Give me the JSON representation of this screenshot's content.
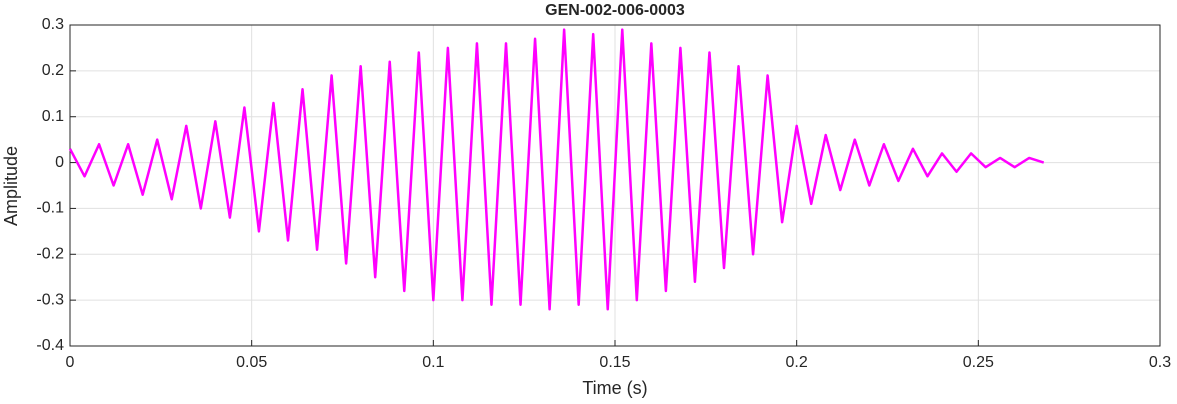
{
  "chart_data": {
    "type": "line",
    "title": "GEN-002-006-0003",
    "xlabel": "Time (s)",
    "ylabel": "Amplitude",
    "x": [
      0,
      0.004,
      0.008,
      0.012,
      0.016,
      0.02,
      0.024,
      0.028,
      0.032,
      0.036,
      0.04,
      0.044,
      0.048,
      0.052,
      0.056,
      0.06,
      0.064,
      0.068,
      0.072,
      0.076,
      0.08,
      0.084,
      0.088,
      0.092,
      0.096,
      0.1,
      0.104,
      0.108,
      0.112,
      0.116,
      0.12,
      0.124,
      0.128,
      0.132,
      0.136,
      0.14,
      0.144,
      0.148,
      0.152,
      0.156,
      0.16,
      0.164,
      0.168,
      0.172,
      0.176,
      0.18,
      0.184,
      0.188,
      0.192,
      0.196,
      0.2,
      0.204,
      0.208,
      0.212,
      0.216,
      0.22,
      0.224,
      0.228,
      0.232,
      0.236,
      0.24,
      0.244,
      0.248,
      0.252,
      0.256,
      0.26,
      0.264,
      0.268
    ],
    "series": [
      {
        "color": "#ff00ff",
        "values": [
          0.03,
          -0.03,
          0.04,
          -0.05,
          0.04,
          -0.07,
          0.05,
          -0.08,
          0.08,
          -0.1,
          0.09,
          -0.12,
          0.12,
          -0.15,
          0.13,
          -0.17,
          0.16,
          -0.19,
          0.19,
          -0.22,
          0.21,
          -0.25,
          0.22,
          -0.28,
          0.24,
          -0.3,
          0.25,
          -0.3,
          0.26,
          -0.31,
          0.26,
          -0.31,
          0.27,
          -0.32,
          0.29,
          -0.31,
          0.28,
          -0.32,
          0.29,
          -0.3,
          0.26,
          -0.28,
          0.25,
          -0.26,
          0.24,
          -0.23,
          0.21,
          -0.2,
          0.19,
          -0.13,
          0.08,
          -0.09,
          0.06,
          -0.06,
          0.05,
          -0.05,
          0.04,
          -0.04,
          0.03,
          -0.03,
          0.02,
          -0.02,
          0.02,
          -0.01,
          0.01,
          -0.01,
          0.01,
          0
        ]
      }
    ],
    "xlim": [
      0,
      0.3
    ],
    "xticks": [
      0,
      0.05,
      0.1,
      0.15,
      0.2,
      0.25,
      0.3
    ],
    "ylim": [
      -0.4,
      0.3
    ],
    "yticks": [
      -0.4,
      -0.3,
      -0.2,
      -0.1,
      0,
      0.1,
      0.2,
      0.3
    ],
    "grid": true
  }
}
